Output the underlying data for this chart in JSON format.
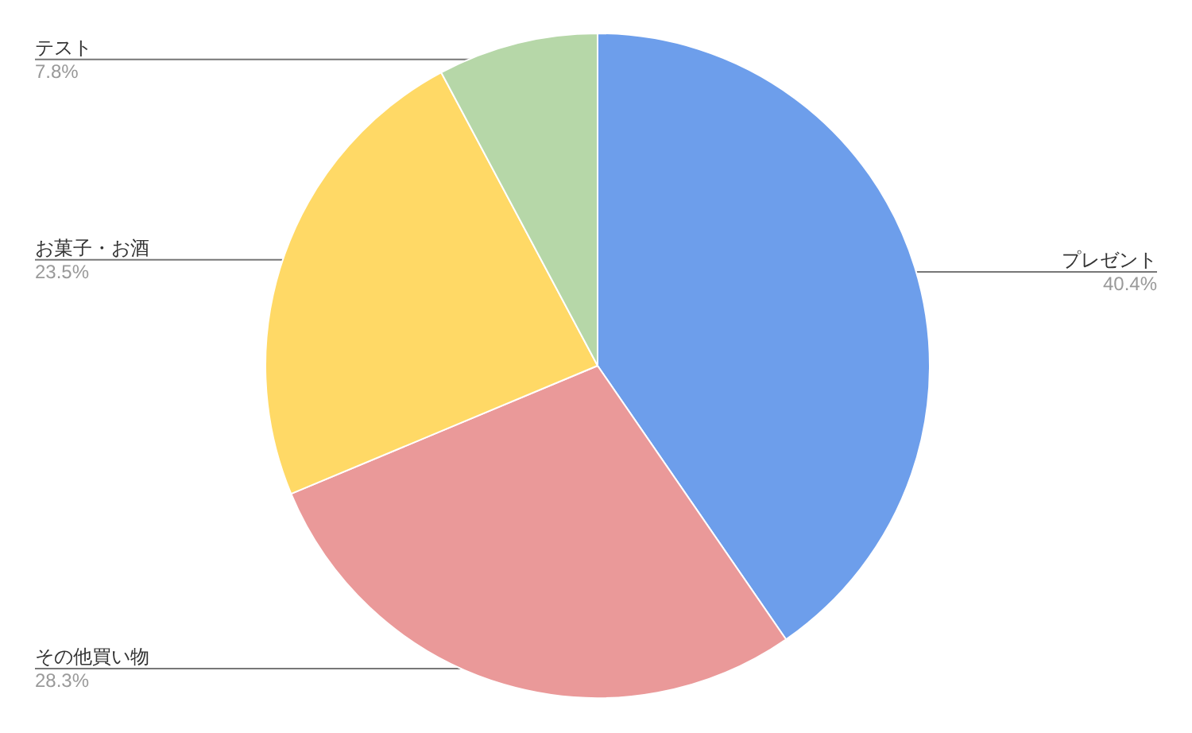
{
  "chart_data": {
    "type": "pie",
    "categories": [
      "プレゼント",
      "その他買い物",
      "お菓子・お酒",
      "テスト"
    ],
    "values": [
      40.4,
      28.3,
      23.5,
      7.8
    ],
    "colors": [
      "#6d9eeb",
      "#ea9999",
      "#ffd966",
      "#b6d7a8"
    ],
    "value_labels": [
      "40.4%",
      "28.3%",
      "23.5%",
      "7.8%"
    ]
  }
}
